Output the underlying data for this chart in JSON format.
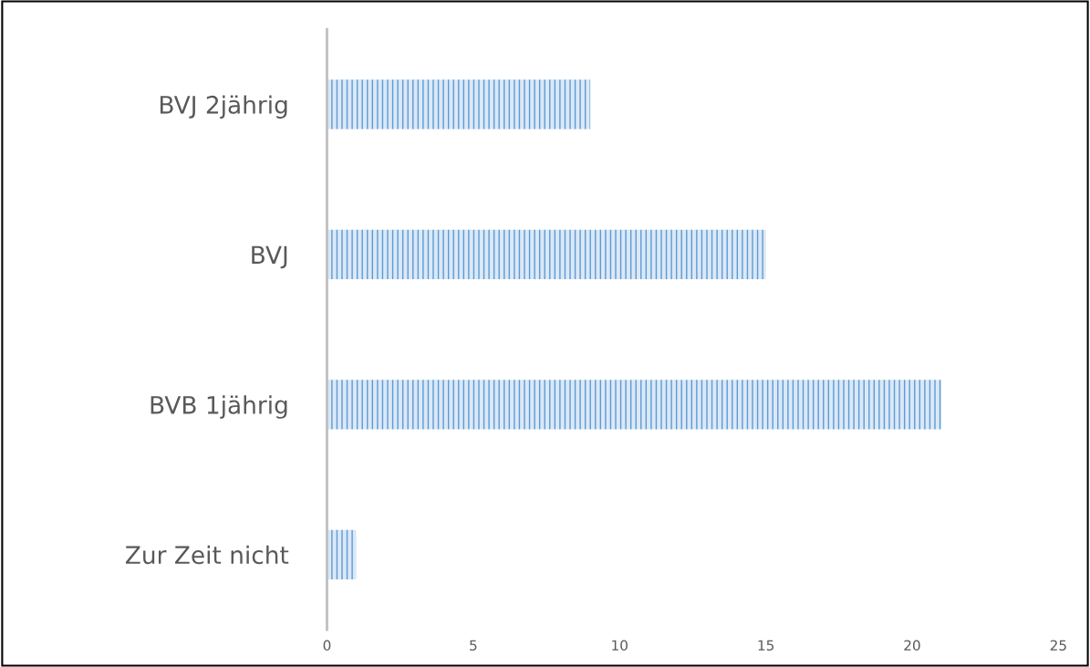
{
  "chart_data": {
    "type": "bar",
    "orientation": "horizontal",
    "categories": [
      "BVJ 2jährig",
      "BVJ",
      "BVB 1jährig",
      "Zur Zeit nicht"
    ],
    "values": [
      9,
      15,
      21,
      1
    ],
    "color": "#5b9bd5",
    "xlim": [
      0,
      25
    ],
    "xticks": [
      0,
      5,
      10,
      15,
      20,
      25
    ],
    "grid": false
  }
}
